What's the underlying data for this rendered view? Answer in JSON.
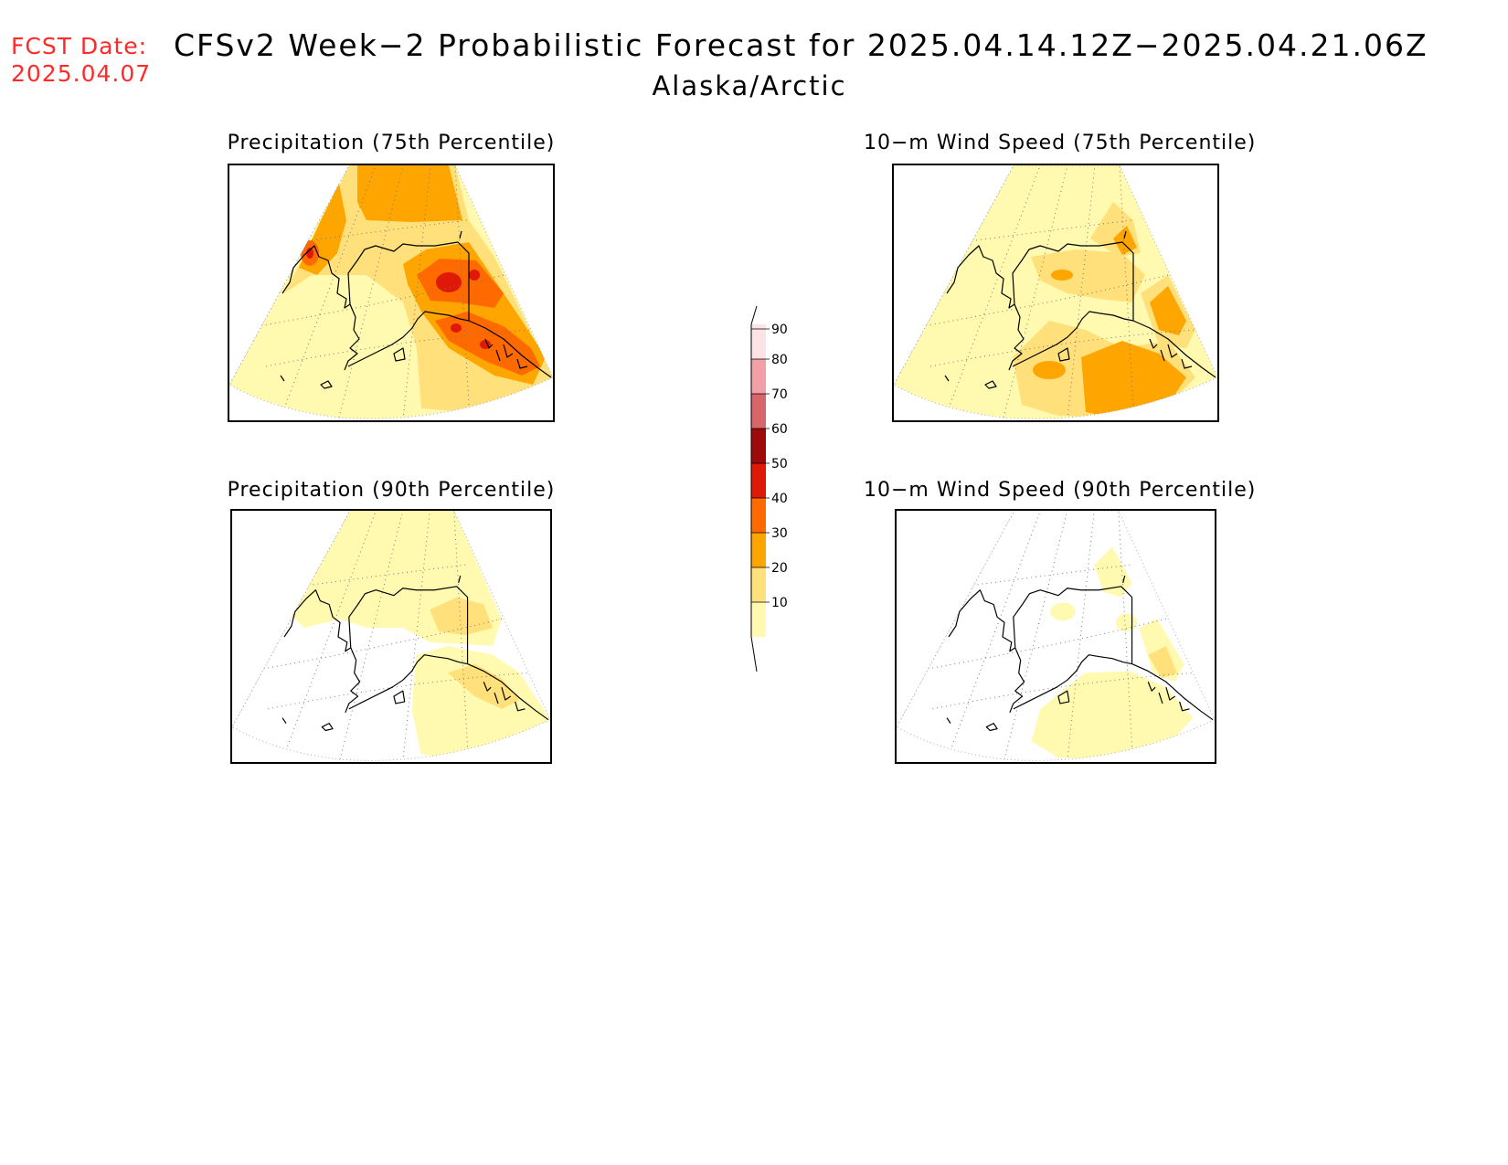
{
  "header": {
    "fcst_label": "FCST Date:",
    "fcst_date": "2025.04.07",
    "title": "CFSv2 Week−2 Probabilistic Forecast for 2025.04.14.12Z−2025.04.21.06Z",
    "region": "Alaska/Arctic"
  },
  "panels": [
    {
      "id": "precip75",
      "title": "Precipitation (75th Percentile)",
      "max_level": 60
    },
    {
      "id": "wind75",
      "title": "10−m Wind Speed (75th Percentile)",
      "max_level": 40
    },
    {
      "id": "precip90",
      "title": "Precipitation (90th Percentile)",
      "max_level": 20
    },
    {
      "id": "wind90",
      "title": "10−m Wind Speed (90th Percentile)",
      "max_level": 20
    }
  ],
  "colorbar": {
    "levels": [
      {
        "label": "90",
        "color": "#fde2e6"
      },
      {
        "label": "80",
        "color": "#f2a0a6"
      },
      {
        "label": "70",
        "color": "#d6666a"
      },
      {
        "label": "60",
        "color": "#9e0a0a"
      },
      {
        "label": "50",
        "color": "#e01808"
      },
      {
        "label": "40",
        "color": "#ff6a00"
      },
      {
        "label": "30",
        "color": "#ffa500"
      },
      {
        "label": "20",
        "color": "#ffe07a"
      },
      {
        "label": "10",
        "color": "#fffab0"
      }
    ],
    "colors": {
      "c10": "#fffab0",
      "c20": "#ffe07a",
      "c30": "#ffa500",
      "c40": "#ff6a00",
      "c50": "#e01808",
      "c60": "#9e0a0a"
    }
  }
}
